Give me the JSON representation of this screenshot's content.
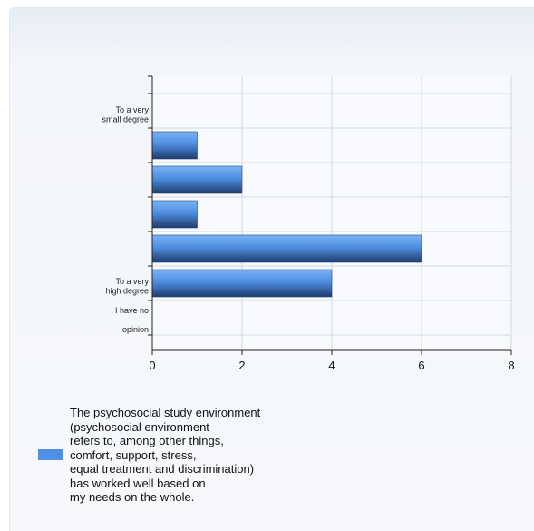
{
  "chart_data": {
    "type": "bar",
    "orientation": "horizontal",
    "categories": [
      "To a very\nsmall degree",
      "",
      "",
      "",
      "",
      "To a very\nhigh degree",
      "I have no\nopinion"
    ],
    "series": [
      {
        "name": "The psychosocial study environment\n(psychosocial environment\nrefers to, among other things,\ncomfort, support, stress,\nequal treatment and discrimination)\nhas worked well based on\nmy needs on the whole.",
        "values": [
          0,
          1,
          2,
          1,
          6,
          4,
          0
        ]
      }
    ],
    "xlim": [
      0,
      8
    ],
    "x_ticks": [
      "0",
      "2",
      "4",
      "6",
      "8"
    ],
    "grid": true,
    "legend_position": "bottom",
    "colors": {
      "bar_light": "#6aa8f5",
      "bar_dark": "#2c4f86",
      "grid": "#d3dbe6",
      "axis": "#222222"
    }
  }
}
